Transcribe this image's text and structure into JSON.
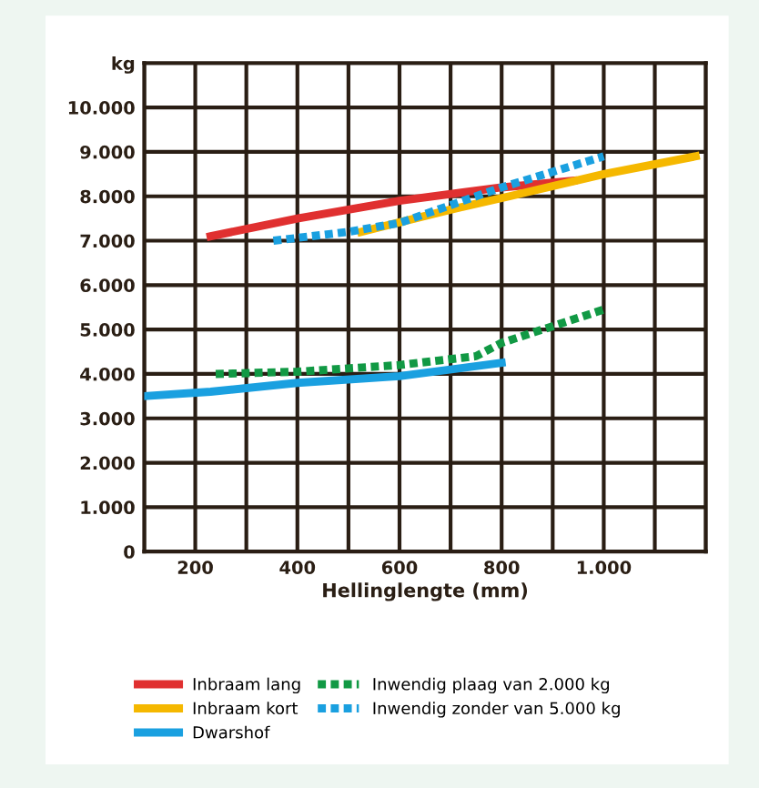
{
  "chart_data": {
    "type": "line",
    "xlabel": "Hellinglengte (mm)",
    "xlim": [
      100,
      1200
    ],
    "xticks": [
      200,
      400,
      600,
      800,
      {
        "value": 1000,
        "label": "1.000"
      }
    ],
    "ylim": [
      0,
      11000
    ],
    "yticks": [
      0,
      {
        "value": 1000,
        "label": "1.000"
      },
      {
        "value": 2000,
        "label": "2.000"
      },
      {
        "value": 3000,
        "label": "3.000"
      },
      {
        "value": 4000,
        "label": "4.000"
      },
      {
        "value": 5000,
        "label": "5.000"
      },
      {
        "value": 6000,
        "label": "6.000"
      },
      {
        "value": 7000,
        "label": "7.000"
      },
      {
        "value": 8000,
        "label": "8.000"
      },
      {
        "value": 9000,
        "label": "9.000"
      },
      {
        "value": 10000,
        "label": "10.000"
      },
      {
        "value": 11000,
        "label": "kg"
      }
    ],
    "grid": true,
    "legend": "bottom",
    "marker": "none",
    "series": [
      {
        "name": "Inbraam lang",
        "color": "#e03030",
        "line_style": "solid",
        "x": [
          230,
          400,
          600,
          800,
          940
        ],
        "values": [
          7100,
          7500,
          7900,
          8200,
          8350
        ]
      },
      {
        "name": "Inbraam kort",
        "color": "#f5b800",
        "line_style": "solid",
        "x": [
          525,
          700,
          815,
          1000,
          1180
        ],
        "values": [
          7200,
          7700,
          8000,
          8500,
          8900
        ]
      },
      {
        "name": "Dwarshof",
        "color": "#1aa0e0",
        "line_style": "solid",
        "x": [
          100,
          230,
          400,
          600,
          800
        ],
        "values": [
          3500,
          3600,
          3800,
          3950,
          4250
        ]
      },
      {
        "name": "Inwendig plaag van 2.000 kg",
        "color": "#119944",
        "line_style": "dotted",
        "x": [
          240,
          400,
          600,
          750,
          800,
          1000
        ],
        "values": [
          4000,
          4050,
          4200,
          4400,
          4700,
          5450
        ]
      },
      {
        "name": "Inwendig zonder van 5.000 kg",
        "color": "#1aa0e0",
        "line_style": "dotted",
        "x": [
          353,
          500,
          600,
          700,
          800,
          1000
        ],
        "values": [
          7000,
          7200,
          7400,
          7800,
          8200,
          8900
        ]
      }
    ]
  }
}
